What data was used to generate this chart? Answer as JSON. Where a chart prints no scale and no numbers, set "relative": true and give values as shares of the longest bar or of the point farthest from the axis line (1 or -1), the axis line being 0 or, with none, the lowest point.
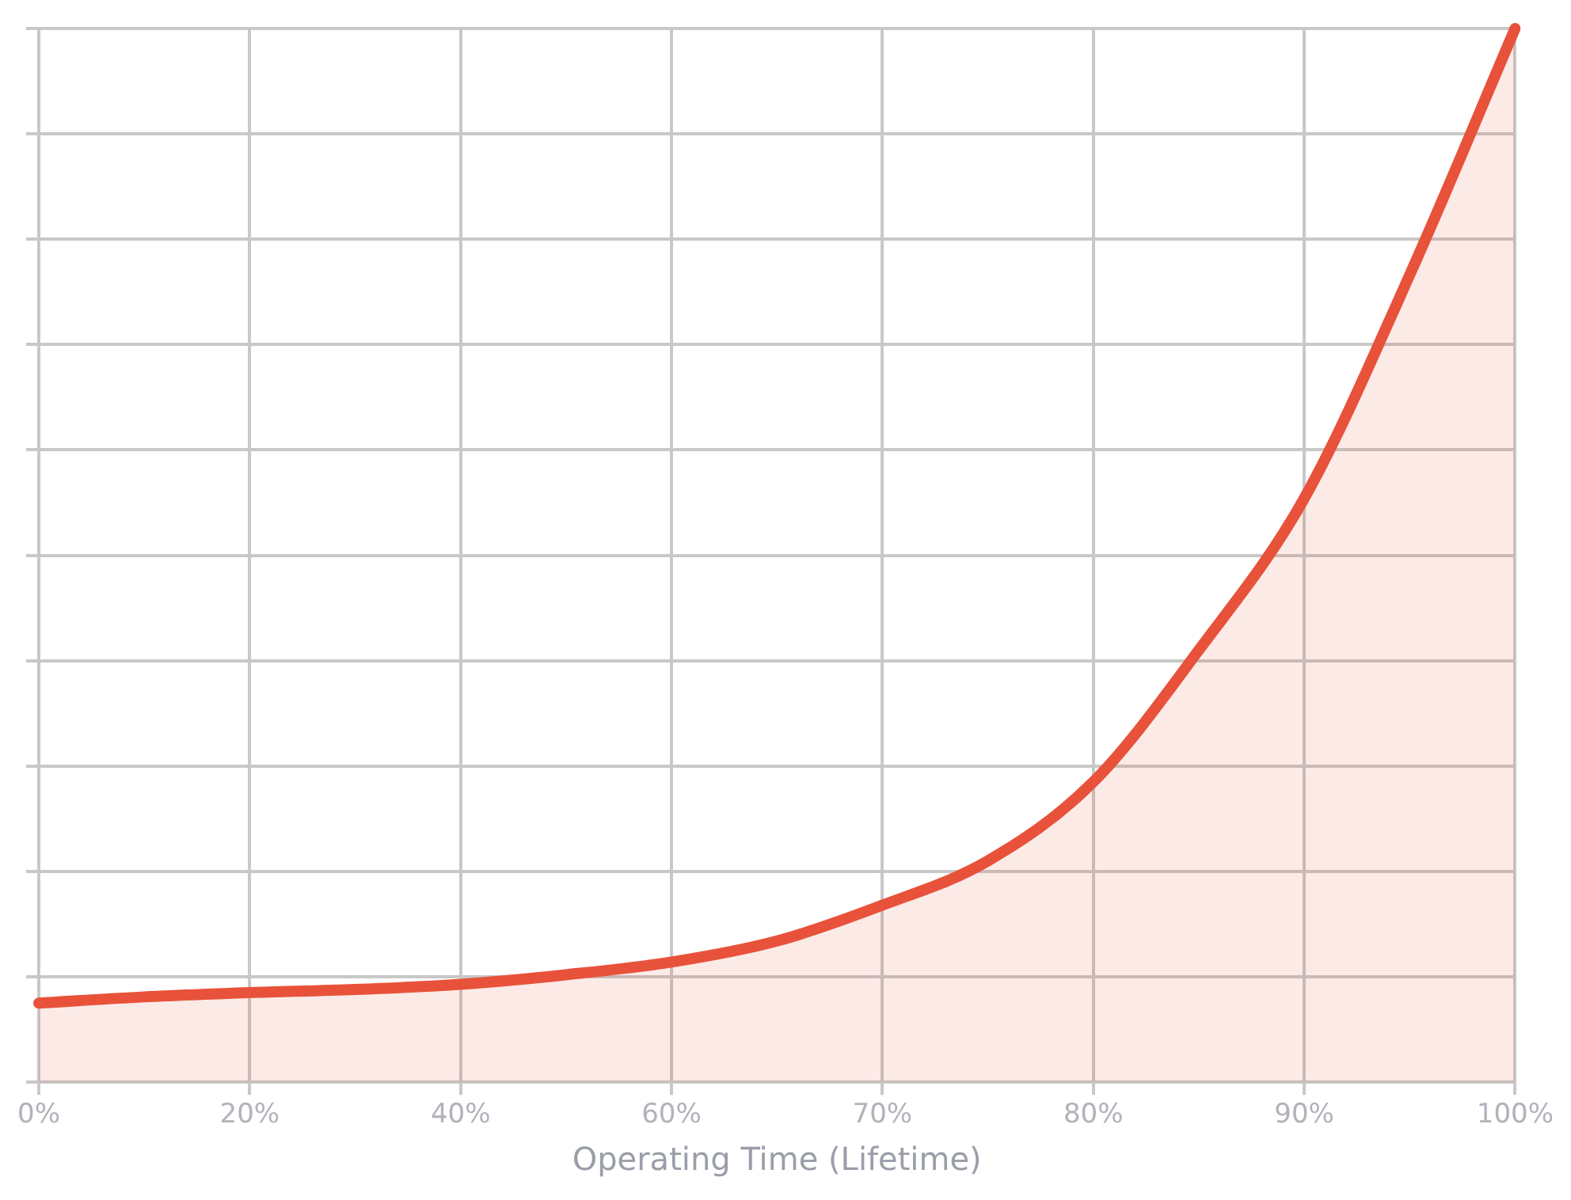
{
  "chart_data": {
    "type": "area",
    "xlabel": "Operating Time (Lifetime)",
    "relative": true,
    "grid": true,
    "legend": false,
    "marker": "none",
    "tick_labels": "x",
    "categories": [
      "0%",
      null,
      "20%",
      null,
      "40%",
      null,
      "60%",
      null,
      "70%",
      null,
      "80%",
      null,
      "90%",
      null,
      "100%"
    ],
    "series": [
      {
        "color": "#e8523a",
        "values": [
          0.075,
          0.081,
          0.085,
          0.088,
          0.093,
          0.102,
          0.114,
          0.134,
          0.168,
          0.21,
          0.285,
          0.41,
          0.554,
          0.766,
          1
        ]
      }
    ]
  }
}
